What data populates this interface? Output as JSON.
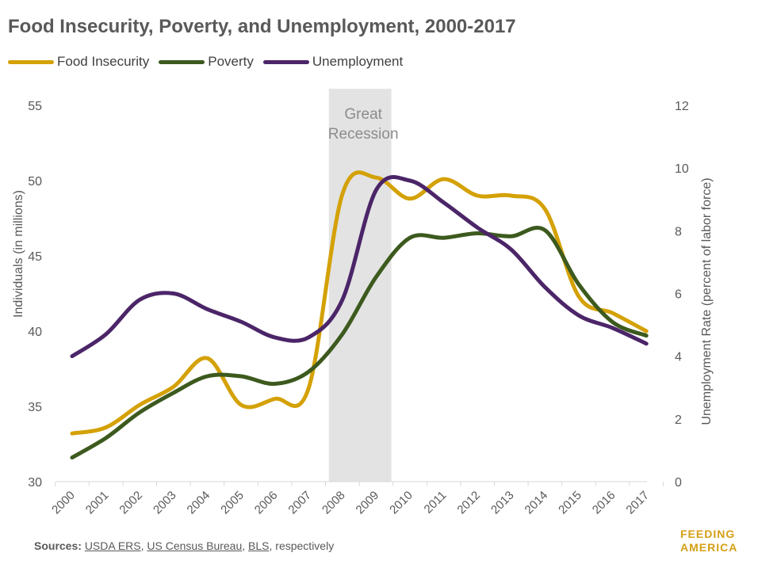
{
  "title": "Food Insecurity, Poverty, and Unemployment, 2000-2017",
  "sources": {
    "prefix": "Sources:",
    "links": [
      "USDA ERS",
      "US Census Bureau",
      "BLS"
    ],
    "suffix": ", respectively"
  },
  "logo": {
    "line1": "FEEDING",
    "line2": "AMERICA"
  },
  "chart_data": {
    "type": "line",
    "title": "Food Insecurity, Poverty, and Unemployment, 2000-2017",
    "categories": [
      "2000",
      "2001",
      "2002",
      "2003",
      "2004",
      "2005",
      "2006",
      "2007",
      "2008",
      "2009",
      "2010",
      "2011",
      "2012",
      "2013",
      "2014",
      "2015",
      "2016",
      "2017"
    ],
    "ylabel": "Individuals (in millions)",
    "y2label": "Unemployment Rate (percent of labor force)",
    "ylim": [
      30,
      55
    ],
    "y2lim": [
      0,
      12
    ],
    "yticks": [
      30,
      35,
      40,
      45,
      50,
      55
    ],
    "y2ticks": [
      0,
      2,
      4,
      6,
      8,
      10,
      12
    ],
    "legend_position": "top-left",
    "grid": false,
    "series": [
      {
        "name": "Food Insecurity",
        "axis": "left",
        "color": "#d4a106",
        "values": [
          33.2,
          33.6,
          35.1,
          36.3,
          38.2,
          35.1,
          35.5,
          36.2,
          49.1,
          50.2,
          48.8,
          50.1,
          49.0,
          49.0,
          48.1,
          42.3,
          41.2,
          40.0
        ]
      },
      {
        "name": "Poverty",
        "axis": "left",
        "color": "#3d5a1e",
        "values": [
          31.6,
          32.9,
          34.6,
          35.9,
          37.0,
          37.0,
          36.5,
          37.3,
          39.8,
          43.6,
          46.2,
          46.2,
          46.5,
          46.3,
          46.7,
          43.1,
          40.6,
          39.7
        ]
      },
      {
        "name": "Unemployment",
        "axis": "right",
        "color": "#4b2568",
        "values": [
          4.0,
          4.7,
          5.8,
          6.0,
          5.5,
          5.1,
          4.6,
          4.6,
          5.8,
          9.3,
          9.6,
          8.9,
          8.1,
          7.4,
          6.2,
          5.3,
          4.9,
          4.4
        ]
      }
    ],
    "annotations": [
      {
        "text": "Great Recession",
        "x_start": "2007",
        "x_end": "2009"
      }
    ]
  }
}
